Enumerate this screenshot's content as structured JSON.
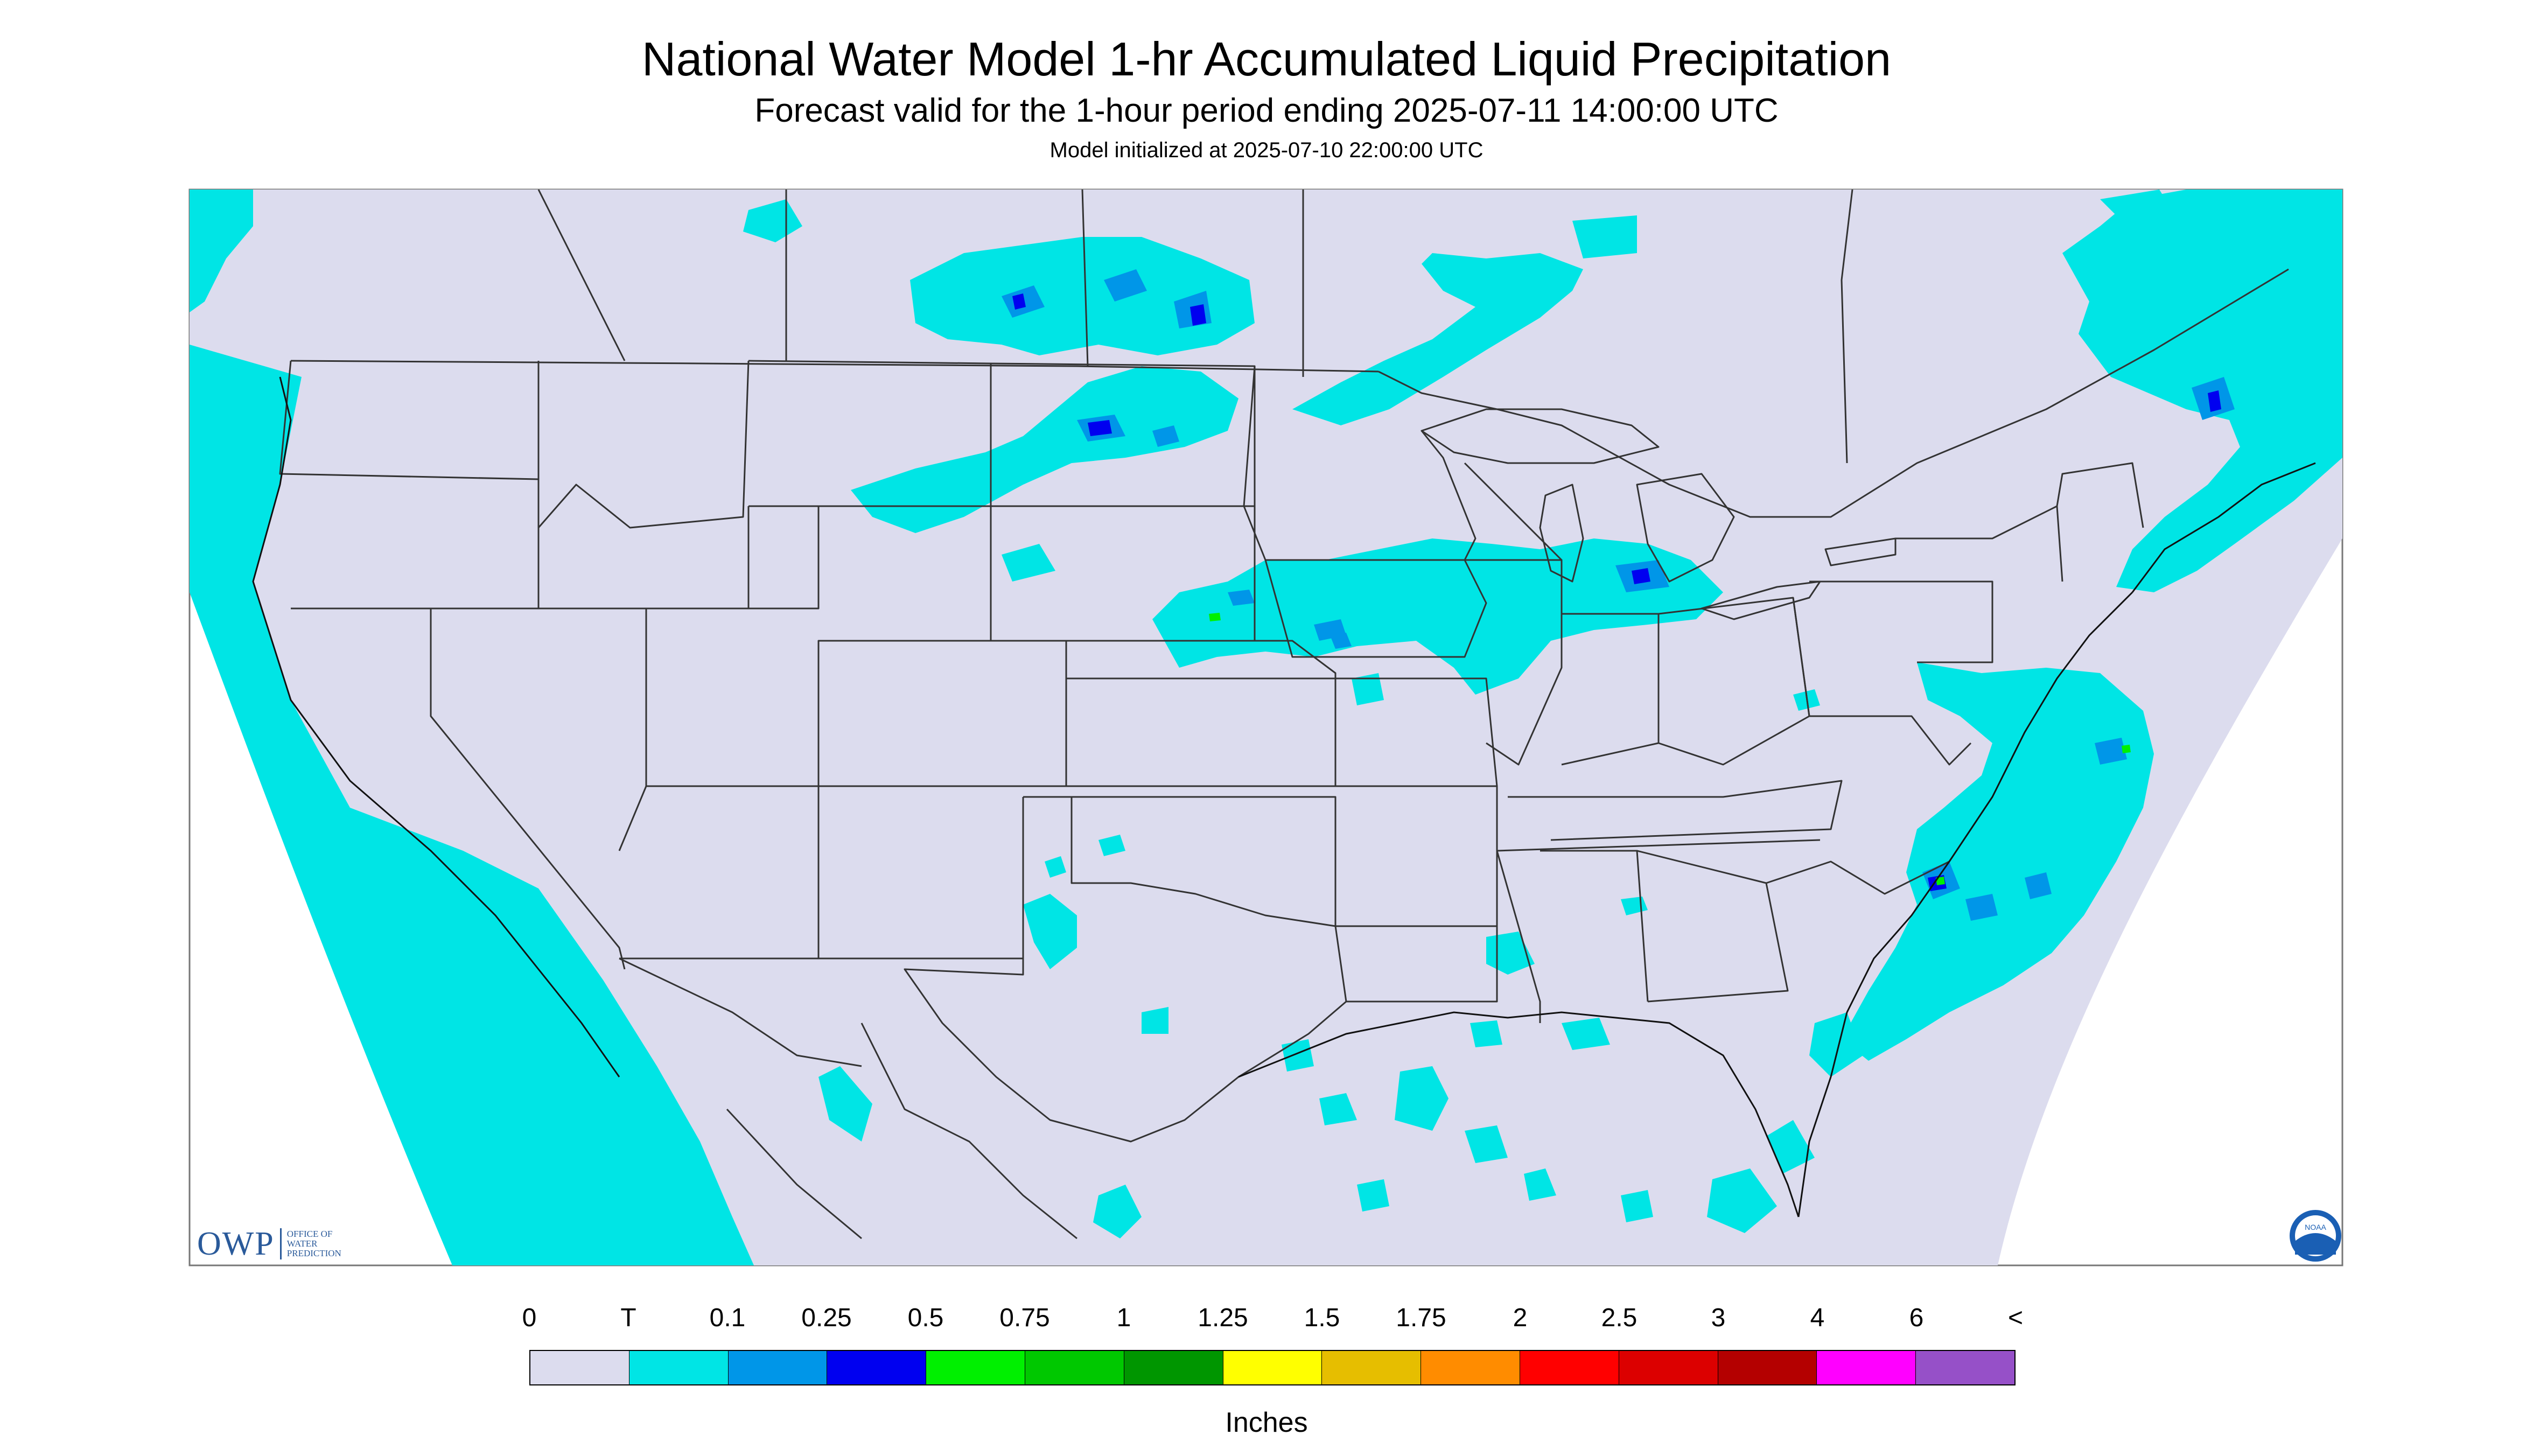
{
  "header": {
    "title": "National Water Model 1-hr Accumulated Liquid Precipitation",
    "subtitle": "Forecast valid for the 1-hour period ending 2025-07-11 14:00:00 UTC",
    "init_line": "Model initialized at 2025-07-10 22:00:00 UTC"
  },
  "logos": {
    "owp_mark": "OWP",
    "owp_text": [
      "OFFICE OF",
      "WATER",
      "PREDICTION"
    ],
    "noaa_text": "NOAA"
  },
  "legend": {
    "labels": [
      "0",
      "T",
      "0.1",
      "0.25",
      "0.5",
      "0.75",
      "1",
      "1.25",
      "1.5",
      "1.75",
      "2",
      "2.5",
      "3",
      "4",
      "6",
      "<"
    ],
    "colors": [
      "#dcdcee",
      "#00e5e5",
      "#0096e8",
      "#0000f0",
      "#00f000",
      "#00c800",
      "#009600",
      "#ffff00",
      "#e6be00",
      "#ff8c00",
      "#ff0000",
      "#dc0000",
      "#b40000",
      "#ff00ff",
      "#9650c8"
    ],
    "units": "Inches"
  },
  "map": {
    "background": "#dcdcee",
    "trace_color": "#00e5e5",
    "light_color": "#0096e8",
    "moderate_color": "#0000f0",
    "heavy_color": "#00f000",
    "boundary_color": "#333333",
    "lines_shown": [
      "state-boundaries",
      "international-borders",
      "coastlines",
      "great-lakes"
    ],
    "precip_areas": [
      "pacific-coast",
      "alberta-saskatchewan",
      "north-dakota-manitoba",
      "lake-superior-ontario",
      "iowa-wisconsin-michigan",
      "new-york-quebec",
      "atlantic-carolinas",
      "gulf-of-mexico",
      "texas-panhandle",
      "northern-mexico"
    ]
  }
}
